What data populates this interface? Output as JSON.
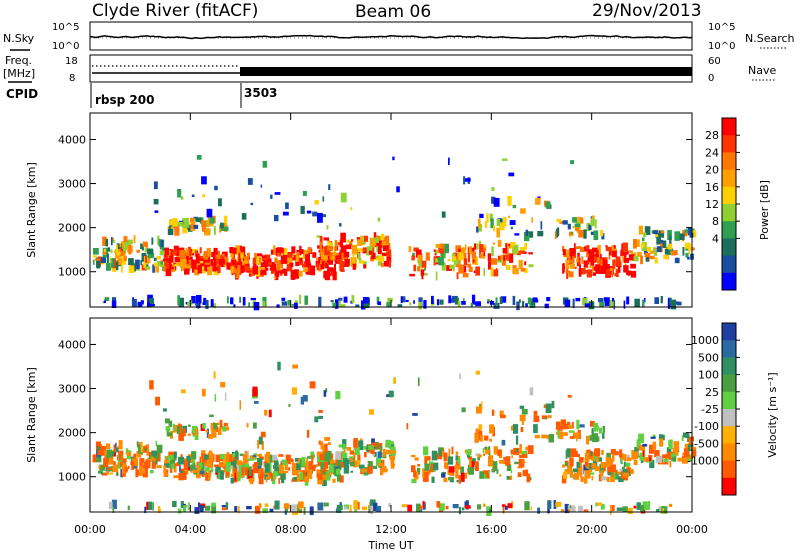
{
  "header": {
    "station": "Clyde River (fitACF)",
    "beam": "Beam 06",
    "date": "29/Nov/2013"
  },
  "strip_sky": {
    "left_label": "N.Sky",
    "right_label": "N.Search",
    "left_ticks": [
      "10^5",
      "10^0"
    ],
    "right_ticks": [
      "10^5",
      "10^0"
    ]
  },
  "strip_freq": {
    "left_label_1": "Freq.",
    "left_label_2": "[MHz]",
    "right_label": "Nave",
    "left_ticks": [
      "18",
      "8"
    ],
    "right_ticks": [
      "60",
      "0"
    ],
    "cpid_label": "CPID",
    "cpid_segments": [
      {
        "label": "rbsp 200",
        "start_hour": 0
      },
      {
        "label": "3503",
        "start_hour": 6
      }
    ]
  },
  "chart_data": [
    {
      "type": "heatmap",
      "name": "power",
      "xlabel": "",
      "ylabel": "Slant Range [km]",
      "xlim": [
        0,
        24
      ],
      "ylim": [
        200,
        4600
      ],
      "yticks": [
        1000,
        2000,
        3000,
        4000
      ],
      "colorbar": {
        "label": "Power [dB]",
        "ticks": [
          "28",
          "24",
          "20",
          "16",
          "12",
          "8",
          "4"
        ],
        "colors": [
          "#ff0000",
          "#ff3300",
          "#ff7700",
          "#ffa000",
          "#ffd000",
          "#90d030",
          "#2ea050",
          "#1c6e5a",
          "#1a4ea0",
          "#0000ff"
        ]
      }
    },
    {
      "type": "heatmap",
      "name": "velocity",
      "xlabel": "Time UT",
      "ylabel": "Slant Range [km]",
      "xlim": [
        0,
        24
      ],
      "ylim": [
        200,
        4600
      ],
      "yticks": [
        1000,
        2000,
        3000,
        4000
      ],
      "xticks": [
        "00:00",
        "04:00",
        "08:00",
        "12:00",
        "16:00",
        "20:00",
        "00:00"
      ],
      "colorbar": {
        "label": "Velocity [m s⁻¹]",
        "ticks": [
          "1000",
          "500",
          "100",
          "25",
          "-25",
          "-100",
          "-500",
          "-1000"
        ],
        "colors": [
          "#1f3fa0",
          "#2a6aa0",
          "#2f8f60",
          "#4aa040",
          "#60d040",
          "#c0c0c0",
          "#ffb000",
          "#ff8a00",
          "#ff5a00",
          "#ff0000"
        ]
      }
    }
  ]
}
